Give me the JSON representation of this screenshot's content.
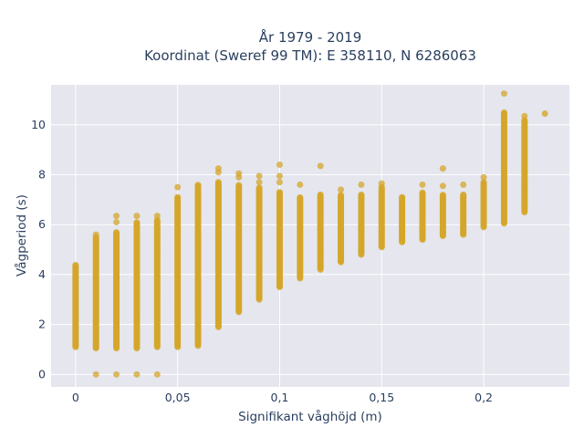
{
  "chart_data": {
    "type": "scatter",
    "title_lines": [
      "År 1979 - 2019",
      "Koordinat (Sweref 99 TM): E 358110, N 6286063"
    ],
    "xlabel": "Signifikant våghöjd (m)",
    "ylabel": "Vågperiod (s)",
    "xlim": [
      -0.012,
      0.242
    ],
    "ylim": [
      -0.5,
      11.6
    ],
    "x_ticks": [
      0,
      0.05,
      0.1,
      0.15,
      0.2
    ],
    "x_tick_labels": [
      "0",
      "0,05",
      "0,1",
      "0,15",
      "0,2"
    ],
    "y_ticks": [
      0,
      2,
      4,
      6,
      8,
      10
    ],
    "y_tick_labels": [
      "0",
      "2",
      "4",
      "6",
      "8",
      "10"
    ],
    "grid": true,
    "marker_color": "#d4a629",
    "plot_bg": "#e5e6ee",
    "columns": [
      {
        "x": 0.0,
        "min": 1.1,
        "max": 4.4,
        "outliers": []
      },
      {
        "x": 0.01,
        "min": 1.05,
        "max": 5.5,
        "outliers": [
          0,
          5.6
        ]
      },
      {
        "x": 0.02,
        "min": 1.05,
        "max": 5.7,
        "outliers": [
          0,
          6.1,
          6.35
        ]
      },
      {
        "x": 0.03,
        "min": 1.05,
        "max": 6.1,
        "outliers": [
          0,
          6.35
        ]
      },
      {
        "x": 0.04,
        "min": 1.1,
        "max": 6.2,
        "outliers": [
          0,
          6.35
        ]
      },
      {
        "x": 0.05,
        "min": 1.1,
        "max": 7.1,
        "outliers": [
          7.5
        ]
      },
      {
        "x": 0.06,
        "min": 1.15,
        "max": 7.6,
        "outliers": []
      },
      {
        "x": 0.07,
        "min": 1.9,
        "max": 7.7,
        "outliers": [
          8.1,
          8.25
        ]
      },
      {
        "x": 0.08,
        "min": 2.5,
        "max": 7.6,
        "outliers": [
          7.9,
          8.05
        ]
      },
      {
        "x": 0.09,
        "min": 3.0,
        "max": 7.5,
        "outliers": [
          7.7,
          7.95
        ]
      },
      {
        "x": 0.1,
        "min": 3.5,
        "max": 7.3,
        "outliers": [
          7.7,
          7.95,
          8.4
        ]
      },
      {
        "x": 0.11,
        "min": 3.85,
        "max": 7.1,
        "outliers": [
          7.6
        ]
      },
      {
        "x": 0.12,
        "min": 4.2,
        "max": 7.2,
        "outliers": [
          8.35
        ]
      },
      {
        "x": 0.13,
        "min": 4.5,
        "max": 7.2,
        "outliers": [
          7.4
        ]
      },
      {
        "x": 0.14,
        "min": 4.8,
        "max": 7.2,
        "outliers": [
          7.6
        ]
      },
      {
        "x": 0.15,
        "min": 5.1,
        "max": 7.5,
        "outliers": [
          7.65
        ]
      },
      {
        "x": 0.16,
        "min": 5.3,
        "max": 7.1,
        "outliers": []
      },
      {
        "x": 0.17,
        "min": 5.4,
        "max": 7.3,
        "outliers": [
          7.6
        ]
      },
      {
        "x": 0.18,
        "min": 5.55,
        "max": 7.2,
        "outliers": [
          7.55,
          8.25
        ]
      },
      {
        "x": 0.19,
        "min": 5.6,
        "max": 7.2,
        "outliers": [
          7.6
        ]
      },
      {
        "x": 0.2,
        "min": 5.9,
        "max": 7.7,
        "outliers": [
          7.9
        ]
      },
      {
        "x": 0.21,
        "min": 6.05,
        "max": 10.5,
        "outliers": [
          11.25
        ]
      },
      {
        "x": 0.22,
        "min": 6.5,
        "max": 10.2,
        "outliers": [
          10.35
        ]
      },
      {
        "x": 0.23,
        "min": 10.45,
        "max": 10.45,
        "outliers": []
      }
    ]
  }
}
